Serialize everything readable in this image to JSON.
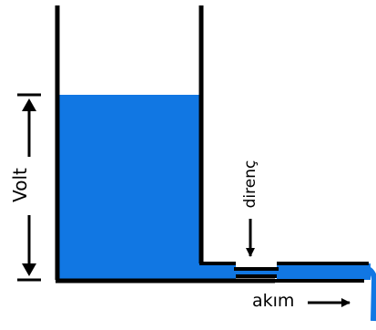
{
  "labels": {
    "volt": "Volt",
    "resistance": "direnç",
    "current": "akım"
  },
  "colors": {
    "water": "#1177e3",
    "line": "#000000",
    "background": "#ffffff"
  },
  "arrows": {
    "current_direction": "right",
    "resistance_pointer": "down",
    "volt_extent": "vertical double-headed"
  }
}
